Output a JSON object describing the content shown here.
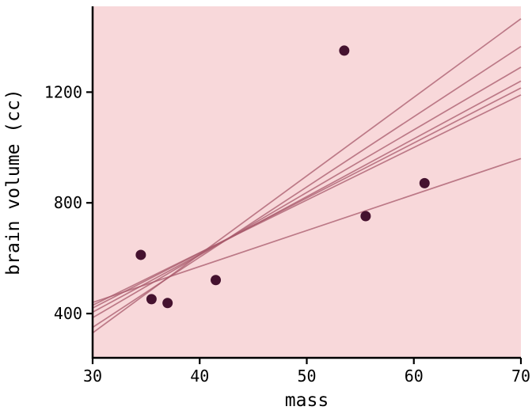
{
  "chart_data": {
    "type": "scatter",
    "title": "",
    "xlabel": "mass",
    "ylabel": "brain volume (cc)",
    "xlim": [
      30,
      70
    ],
    "ylim": [
      240,
      1510
    ],
    "x_ticks": [
      30,
      40,
      50,
      60,
      70
    ],
    "y_ticks": [
      400,
      800,
      1200
    ],
    "grid": false,
    "legend": "none",
    "points": [
      {
        "mass": 34.5,
        "brain_volume_cc": 612
      },
      {
        "mass": 35.5,
        "brain_volume_cc": 452
      },
      {
        "mass": 37.0,
        "brain_volume_cc": 438
      },
      {
        "mass": 41.5,
        "brain_volume_cc": 521
      },
      {
        "mass": 53.5,
        "brain_volume_cc": 1350
      },
      {
        "mass": 55.5,
        "brain_volume_cc": 752
      },
      {
        "mass": 61.0,
        "brain_volume_cc": 871
      }
    ],
    "regression_lines": [
      {
        "x": [
          30,
          70
        ],
        "y": [
          330,
          1465
        ]
      },
      {
        "x": [
          30,
          70
        ],
        "y": [
          350,
          1365
        ]
      },
      {
        "x": [
          30,
          70
        ],
        "y": [
          385,
          1290
        ]
      },
      {
        "x": [
          30,
          70
        ],
        "y": [
          405,
          1240
        ]
      },
      {
        "x": [
          30,
          70
        ],
        "y": [
          420,
          1215
        ]
      },
      {
        "x": [
          30,
          70
        ],
        "y": [
          430,
          1190
        ]
      },
      {
        "x": [
          30,
          70
        ],
        "y": [
          440,
          960
        ]
      }
    ],
    "colors": {
      "plot_background": "#f8d8da",
      "point": "#45122f",
      "line": "#a8596b",
      "axis": "#000000",
      "outer_background": "#ffffff"
    }
  }
}
